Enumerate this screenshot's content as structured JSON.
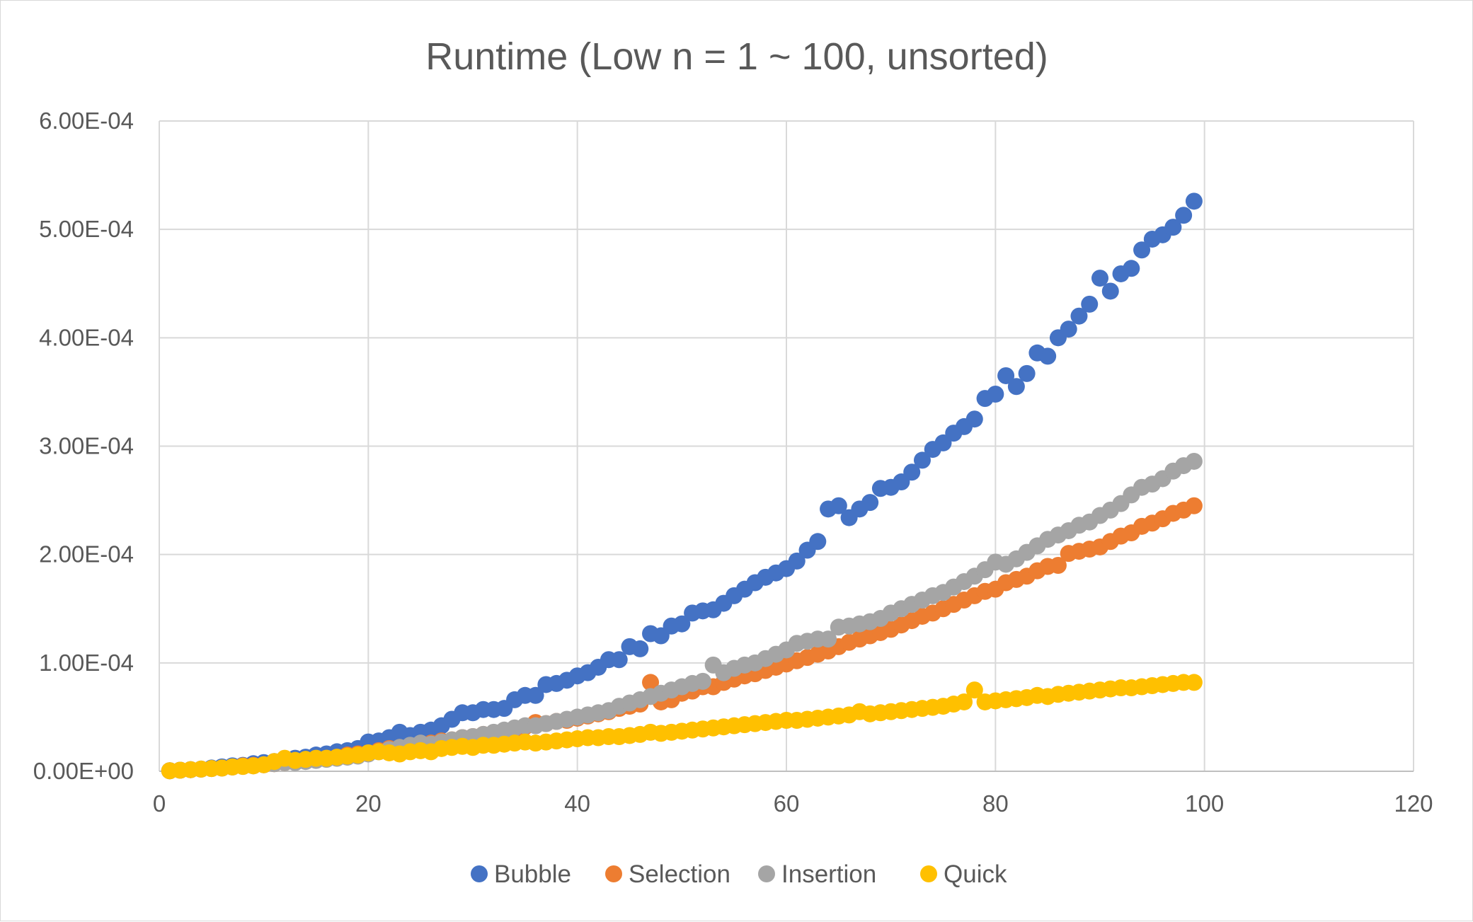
{
  "chart_data": {
    "type": "scatter",
    "title": "Runtime (Low n = 1 ~ 100, unsorted)",
    "xlabel": "",
    "ylabel": "",
    "xlim": [
      0,
      120
    ],
    "ylim": [
      0,
      0.0006
    ],
    "x_ticks": [
      0,
      20,
      40,
      60,
      80,
      100,
      120
    ],
    "y_ticks": [
      0,
      0.0001,
      0.0002,
      0.0003,
      0.0004,
      0.0005,
      0.0006
    ],
    "x_tick_labels": [
      "0",
      "20",
      "40",
      "60",
      "80",
      "100",
      "120"
    ],
    "y_tick_labels": [
      "0.00E+00",
      "1.00E-04",
      "2.00E-04",
      "3.00E-04",
      "4.00E-04",
      "5.00E-04",
      "6.00E-04"
    ],
    "grid": true,
    "legend_position": "bottom",
    "series": [
      {
        "name": "Bubble",
        "color": "#4472C4",
        "x": [
          1,
          2,
          3,
          4,
          5,
          6,
          7,
          8,
          9,
          10,
          11,
          12,
          13,
          14,
          15,
          16,
          17,
          18,
          19,
          20,
          21,
          22,
          23,
          24,
          25,
          26,
          27,
          28,
          29,
          30,
          31,
          32,
          33,
          34,
          35,
          36,
          37,
          38,
          39,
          40,
          41,
          42,
          43,
          44,
          45,
          46,
          47,
          48,
          49,
          50,
          51,
          52,
          53,
          54,
          55,
          56,
          57,
          58,
          59,
          60,
          61,
          62,
          63,
          64,
          65,
          66,
          67,
          68,
          69,
          70,
          71,
          72,
          73,
          74,
          75,
          76,
          77,
          78,
          79,
          80,
          81,
          82,
          83,
          84,
          85,
          86,
          87,
          88,
          89,
          90,
          91,
          92,
          93,
          94,
          95,
          96,
          97,
          98,
          99
        ],
        "y": [
          5e-07,
          1e-06,
          1.5e-06,
          2e-06,
          3e-06,
          4e-06,
          5e-06,
          5.5e-06,
          7e-06,
          8e-06,
          9e-06,
          1.1e-05,
          1.2e-05,
          1.3e-05,
          1.5e-05,
          1.6e-05,
          1.8e-05,
          1.9e-05,
          2.1e-05,
          2.7e-05,
          2.8e-05,
          3.1e-05,
          3.6e-05,
          3.3e-05,
          3.6e-05,
          3.8e-05,
          4.2e-05,
          4.8e-05,
          5.4e-05,
          5.4e-05,
          5.7e-05,
          5.7e-05,
          5.8e-05,
          6.6e-05,
          7e-05,
          7e-05,
          8e-05,
          8.1e-05,
          8.4e-05,
          8.8e-05,
          9.1e-05,
          9.6e-05,
          0.000103,
          0.000103,
          0.000115,
          0.000113,
          0.000127,
          0.000125,
          0.000134,
          0.000136,
          0.000146,
          0.000148,
          0.000149,
          0.000155,
          0.000162,
          0.000168,
          0.000174,
          0.000179,
          0.000183,
          0.000187,
          0.000194,
          0.000204,
          0.000212,
          0.000242,
          0.000245,
          0.000234,
          0.000242,
          0.000248,
          0.000261,
          0.000262,
          0.000267,
          0.000276,
          0.000287,
          0.000297,
          0.000303,
          0.000312,
          0.000318,
          0.000325,
          0.000344,
          0.000348,
          0.000365,
          0.000355,
          0.000367,
          0.000386,
          0.000383,
          0.0004,
          0.000408,
          0.00042,
          0.000431,
          0.000455,
          0.000443,
          0.000459,
          0.000464,
          0.000481,
          0.000491,
          0.000495,
          0.000502,
          0.000513,
          0.000526
        ]
      },
      {
        "name": "Selection",
        "color": "#ED7D31",
        "x": [
          1,
          2,
          3,
          4,
          5,
          6,
          7,
          8,
          9,
          10,
          11,
          12,
          13,
          14,
          15,
          16,
          17,
          18,
          19,
          20,
          21,
          22,
          23,
          24,
          25,
          26,
          27,
          28,
          29,
          30,
          31,
          32,
          33,
          34,
          35,
          36,
          37,
          38,
          39,
          40,
          41,
          42,
          43,
          44,
          45,
          46,
          47,
          48,
          49,
          50,
          51,
          52,
          53,
          54,
          55,
          56,
          57,
          58,
          59,
          60,
          61,
          62,
          63,
          64,
          65,
          66,
          67,
          68,
          69,
          70,
          71,
          72,
          73,
          74,
          75,
          76,
          77,
          78,
          79,
          80,
          81,
          82,
          83,
          84,
          85,
          86,
          87,
          88,
          89,
          90,
          91,
          92,
          93,
          94,
          95,
          96,
          97,
          98,
          99
        ],
        "y": [
          5e-07,
          1e-06,
          1.5e-06,
          2e-06,
          2.5e-06,
          3e-06,
          4e-06,
          5e-06,
          5.5e-06,
          6e-06,
          7e-06,
          8e-06,
          9e-06,
          1e-05,
          1.1e-05,
          1.2e-05,
          1.3e-05,
          1.5e-05,
          1.6e-05,
          1.7e-05,
          1.9e-05,
          2.1e-05,
          2.2e-05,
          2.3e-05,
          2.5e-05,
          2.6e-05,
          2.8e-05,
          2.9e-05,
          3.1e-05,
          3.2e-05,
          3.4e-05,
          3.5e-05,
          3.7e-05,
          3.9e-05,
          4.1e-05,
          4.5e-05,
          4.4e-05,
          4.6e-05,
          4.7e-05,
          4.9e-05,
          5.1e-05,
          5.3e-05,
          5.5e-05,
          5.8e-05,
          6e-05,
          6.2e-05,
          8.2e-05,
          6.4e-05,
          6.6e-05,
          7.2e-05,
          7.4e-05,
          7.8e-05,
          7.8e-05,
          8.2e-05,
          8.5e-05,
          8.8e-05,
          9e-05,
          9.3e-05,
          9.6e-05,
          9.9e-05,
          0.000102,
          0.000105,
          0.000108,
          0.000111,
          0.000115,
          0.000119,
          0.000122,
          0.000125,
          0.000128,
          0.000131,
          0.000135,
          0.000139,
          0.000143,
          0.000146,
          0.00015,
          0.000154,
          0.000158,
          0.000162,
          0.000166,
          0.000168,
          0.000174,
          0.000177,
          0.00018,
          0.000185,
          0.000189,
          0.00019,
          0.000201,
          0.000203,
          0.000205,
          0.000207,
          0.000212,
          0.000217,
          0.00022,
          0.000226,
          0.000229,
          0.000233,
          0.000238,
          0.000241,
          0.000245
        ]
      },
      {
        "name": "Insertion",
        "color": "#A5A5A5",
        "x": [
          1,
          2,
          3,
          4,
          5,
          6,
          7,
          8,
          9,
          10,
          11,
          12,
          13,
          14,
          15,
          16,
          17,
          18,
          19,
          20,
          21,
          22,
          23,
          24,
          25,
          26,
          27,
          28,
          29,
          30,
          31,
          32,
          33,
          34,
          35,
          36,
          37,
          38,
          39,
          40,
          41,
          42,
          43,
          44,
          45,
          46,
          47,
          48,
          49,
          50,
          51,
          52,
          53,
          54,
          55,
          56,
          57,
          58,
          59,
          60,
          61,
          62,
          63,
          64,
          65,
          66,
          67,
          68,
          69,
          70,
          71,
          72,
          73,
          74,
          75,
          76,
          77,
          78,
          79,
          80,
          81,
          82,
          83,
          84,
          85,
          86,
          87,
          88,
          89,
          90,
          91,
          92,
          93,
          94,
          95,
          96,
          97,
          98,
          99
        ],
        "y": [
          5e-07,
          1e-06,
          1.5e-06,
          2e-06,
          2.5e-06,
          3e-06,
          4e-06,
          4.5e-06,
          5e-06,
          6e-06,
          7e-06,
          8e-06,
          8e-06,
          9e-06,
          1e-05,
          1.1e-05,
          1.2e-05,
          1.3e-05,
          1.4e-05,
          1.6e-05,
          1.8e-05,
          2e-05,
          2.2e-05,
          2.4e-05,
          2.6e-05,
          2.5e-05,
          2.7e-05,
          2.9e-05,
          3.1e-05,
          3.2e-05,
          3.4e-05,
          3.6e-05,
          3.8e-05,
          4e-05,
          4.2e-05,
          4.2e-05,
          4.4e-05,
          4.6e-05,
          4.8e-05,
          5e-05,
          5.2e-05,
          5.4e-05,
          5.6e-05,
          6e-05,
          6.3e-05,
          6.6e-05,
          6.9e-05,
          7.2e-05,
          7.5e-05,
          7.8e-05,
          8.1e-05,
          8.3e-05,
          9.8e-05,
          9.1e-05,
          9.5e-05,
          9.8e-05,
          0.0001,
          0.000104,
          0.000108,
          0.000112,
          0.000118,
          0.00012,
          0.000122,
          0.000122,
          0.000133,
          0.000134,
          0.000136,
          0.000138,
          0.000141,
          0.000146,
          0.00015,
          0.000154,
          0.000158,
          0.000162,
          0.000165,
          0.00017,
          0.000175,
          0.00018,
          0.000186,
          0.000193,
          0.000191,
          0.000196,
          0.000202,
          0.000208,
          0.000214,
          0.000218,
          0.000222,
          0.000227,
          0.00023,
          0.000236,
          0.000241,
          0.000247,
          0.000255,
          0.000262,
          0.000265,
          0.00027,
          0.000277,
          0.000282,
          0.000286
        ]
      },
      {
        "name": "Quick",
        "color": "#FFC000",
        "x": [
          1,
          2,
          3,
          4,
          5,
          6,
          7,
          8,
          9,
          10,
          11,
          12,
          13,
          14,
          15,
          16,
          17,
          18,
          19,
          20,
          21,
          22,
          23,
          24,
          25,
          26,
          27,
          28,
          29,
          30,
          31,
          32,
          33,
          34,
          35,
          36,
          37,
          38,
          39,
          40,
          41,
          42,
          43,
          44,
          45,
          46,
          47,
          48,
          49,
          50,
          51,
          52,
          53,
          54,
          55,
          56,
          57,
          58,
          59,
          60,
          61,
          62,
          63,
          64,
          65,
          66,
          67,
          68,
          69,
          70,
          71,
          72,
          73,
          74,
          75,
          76,
          77,
          78,
          79,
          80,
          81,
          82,
          83,
          84,
          85,
          86,
          87,
          88,
          89,
          90,
          91,
          92,
          93,
          94,
          95,
          96,
          97,
          98,
          99
        ],
        "y": [
          5e-07,
          1e-06,
          1.5e-06,
          2e-06,
          2.5e-06,
          3e-06,
          4e-06,
          4.5e-06,
          5e-06,
          6e-06,
          9e-06,
          1.2e-05,
          1e-05,
          1.1e-05,
          1.2e-05,
          1.2e-05,
          1.3e-05,
          1.4e-05,
          1.5e-05,
          1.7e-05,
          1.8e-05,
          1.7e-05,
          1.6e-05,
          1.8e-05,
          1.9e-05,
          1.8e-05,
          2.1e-05,
          2.2e-05,
          2.3e-05,
          2.2e-05,
          2.4e-05,
          2.4e-05,
          2.5e-05,
          2.6e-05,
          2.7e-05,
          2.6e-05,
          2.7e-05,
          2.8e-05,
          2.9e-05,
          3e-05,
          3.1e-05,
          3.1e-05,
          3.2e-05,
          3.2e-05,
          3.3e-05,
          3.4e-05,
          3.6e-05,
          3.5e-05,
          3.6e-05,
          3.7e-05,
          3.8e-05,
          3.9e-05,
          4e-05,
          4.1e-05,
          4.2e-05,
          4.3e-05,
          4.4e-05,
          4.5e-05,
          4.6e-05,
          4.7e-05,
          4.7e-05,
          4.8e-05,
          4.9e-05,
          5e-05,
          5.1e-05,
          5.2e-05,
          5.5e-05,
          5.3e-05,
          5.4e-05,
          5.5e-05,
          5.6e-05,
          5.7e-05,
          5.8e-05,
          5.9e-05,
          6e-05,
          6.2e-05,
          6.4e-05,
          7.5e-05,
          6.4e-05,
          6.5e-05,
          6.6e-05,
          6.7e-05,
          6.8e-05,
          7e-05,
          6.9e-05,
          7.1e-05,
          7.2e-05,
          7.3e-05,
          7.4e-05,
          7.5e-05,
          7.6e-05,
          7.7e-05,
          7.7e-05,
          7.8e-05,
          7.9e-05,
          8e-05,
          8.1e-05,
          8.2e-05,
          8.2e-05
        ]
      }
    ]
  }
}
